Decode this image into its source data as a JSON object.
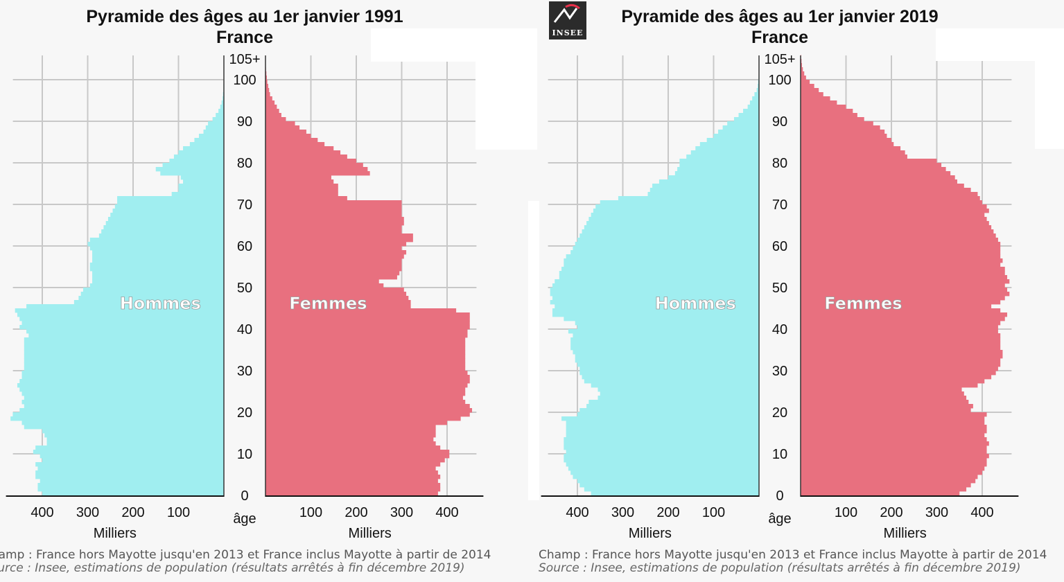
{
  "logo": {
    "text": "INSEE"
  },
  "chart_data": [
    {
      "type": "bar",
      "orientation": "horizontal-pyramid",
      "title": "Pyramide des âges au 1er janvier 1991",
      "subtitle": "France",
      "center_axis_label": "âge",
      "age_ticks": [
        "0",
        "10",
        "20",
        "30",
        "40",
        "50",
        "60",
        "70",
        "80",
        "90",
        "100",
        "105+"
      ],
      "xlabel_left": "Milliers",
      "xlabel_right": "Milliers",
      "x_ticks_left": [
        "400",
        "300",
        "200",
        "100"
      ],
      "x_ticks_right": [
        "100",
        "200",
        "300",
        "400"
      ],
      "xlim": [
        0,
        480
      ],
      "series": [
        {
          "name": "Hommes",
          "color": "#a0eef0",
          "values": [
            400,
            410,
            410,
            405,
            415,
            415,
            410,
            415,
            400,
            405,
            420,
            415,
            390,
            390,
            395,
            400,
            440,
            445,
            470,
            465,
            450,
            440,
            445,
            440,
            445,
            450,
            455,
            450,
            445,
            445,
            440,
            440,
            440,
            440,
            440,
            440,
            440,
            440,
            430,
            435,
            450,
            445,
            450,
            455,
            460,
            435,
            330,
            320,
            315,
            310,
            295,
            290,
            290,
            290,
            295,
            295,
            290,
            290,
            290,
            295,
            300,
            295,
            275,
            270,
            265,
            260,
            255,
            250,
            245,
            240,
            235,
            235,
            115,
            100,
            100,
            90,
            95,
            140,
            150,
            135,
            120,
            110,
            100,
            90,
            75,
            65,
            55,
            45,
            40,
            35,
            25,
            18,
            12,
            8,
            5,
            3,
            2,
            1,
            1,
            0,
            0,
            0,
            0,
            0,
            0,
            0
          ]
        },
        {
          "name": "Femmes",
          "color": "#e8707f",
          "values": [
            380,
            385,
            385,
            380,
            385,
            380,
            375,
            385,
            395,
            405,
            405,
            385,
            375,
            370,
            375,
            375,
            375,
            400,
            430,
            450,
            455,
            450,
            440,
            435,
            440,
            440,
            445,
            450,
            450,
            445,
            440,
            440,
            440,
            440,
            440,
            440,
            440,
            440,
            445,
            445,
            450,
            450,
            450,
            450,
            420,
            320,
            320,
            315,
            310,
            305,
            260,
            250,
            290,
            295,
            300,
            300,
            300,
            305,
            310,
            300,
            310,
            325,
            325,
            300,
            300,
            305,
            305,
            300,
            300,
            300,
            300,
            180,
            160,
            160,
            160,
            150,
            145,
            230,
            225,
            215,
            200,
            180,
            165,
            150,
            130,
            115,
            100,
            90,
            75,
            65,
            45,
            35,
            30,
            25,
            20,
            15,
            10,
            8,
            6,
            4,
            3,
            2,
            1,
            0,
            0,
            0
          ]
        }
      ]
    },
    {
      "type": "bar",
      "orientation": "horizontal-pyramid",
      "title": "Pyramide des âges au 1er janvier 2019",
      "subtitle": "France",
      "center_axis_label": "âge",
      "age_ticks": [
        "0",
        "10",
        "20",
        "30",
        "40",
        "50",
        "60",
        "70",
        "80",
        "90",
        "100",
        "105+"
      ],
      "xlabel_left": "Milliers",
      "xlabel_right": "Milliers",
      "x_ticks_left": [
        "400",
        "300",
        "200",
        "100"
      ],
      "x_ticks_right": [
        "100",
        "200",
        "300",
        "400"
      ],
      "xlim": [
        0,
        480
      ],
      "series": [
        {
          "name": "Hommes",
          "color": "#a0eef0",
          "values": [
            370,
            385,
            395,
            400,
            410,
            415,
            420,
            425,
            430,
            430,
            425,
            430,
            430,
            430,
            425,
            425,
            425,
            425,
            435,
            400,
            395,
            380,
            375,
            355,
            350,
            355,
            370,
            385,
            390,
            395,
            395,
            400,
            405,
            405,
            410,
            415,
            415,
            415,
            410,
            420,
            400,
            405,
            430,
            455,
            455,
            450,
            460,
            455,
            460,
            460,
            455,
            450,
            440,
            440,
            435,
            430,
            430,
            425,
            415,
            410,
            405,
            400,
            395,
            390,
            385,
            380,
            375,
            370,
            365,
            360,
            350,
            310,
            245,
            240,
            235,
            220,
            200,
            185,
            180,
            175,
            175,
            160,
            150,
            140,
            130,
            115,
            100,
            90,
            80,
            70,
            55,
            45,
            35,
            25,
            20,
            15,
            10,
            5,
            3,
            2,
            1,
            0,
            0,
            0,
            0,
            0
          ]
        },
        {
          "name": "Femmes",
          "color": "#e8707f",
          "values": [
            350,
            365,
            375,
            385,
            390,
            400,
            405,
            410,
            410,
            415,
            410,
            410,
            415,
            410,
            405,
            410,
            410,
            405,
            405,
            410,
            375,
            380,
            370,
            365,
            360,
            355,
            390,
            405,
            420,
            430,
            435,
            440,
            440,
            445,
            445,
            440,
            440,
            440,
            440,
            435,
            435,
            440,
            450,
            455,
            440,
            420,
            440,
            450,
            460,
            455,
            450,
            460,
            455,
            450,
            450,
            440,
            445,
            440,
            440,
            440,
            440,
            435,
            430,
            425,
            420,
            415,
            410,
            405,
            415,
            410,
            400,
            395,
            390,
            375,
            360,
            345,
            340,
            330,
            320,
            310,
            300,
            235,
            230,
            220,
            205,
            200,
            190,
            185,
            175,
            160,
            140,
            125,
            115,
            100,
            80,
            65,
            50,
            40,
            30,
            20,
            12,
            8,
            5,
            3,
            2,
            1
          ]
        }
      ]
    }
  ],
  "footnote": {
    "champ": "Champ : France hors Mayotte jusqu'en 2013 et France inclus Mayotte à partir de 2014",
    "source": "Source : Insee, estimations de population (résultats arrêtés à fin décembre 2019)"
  }
}
